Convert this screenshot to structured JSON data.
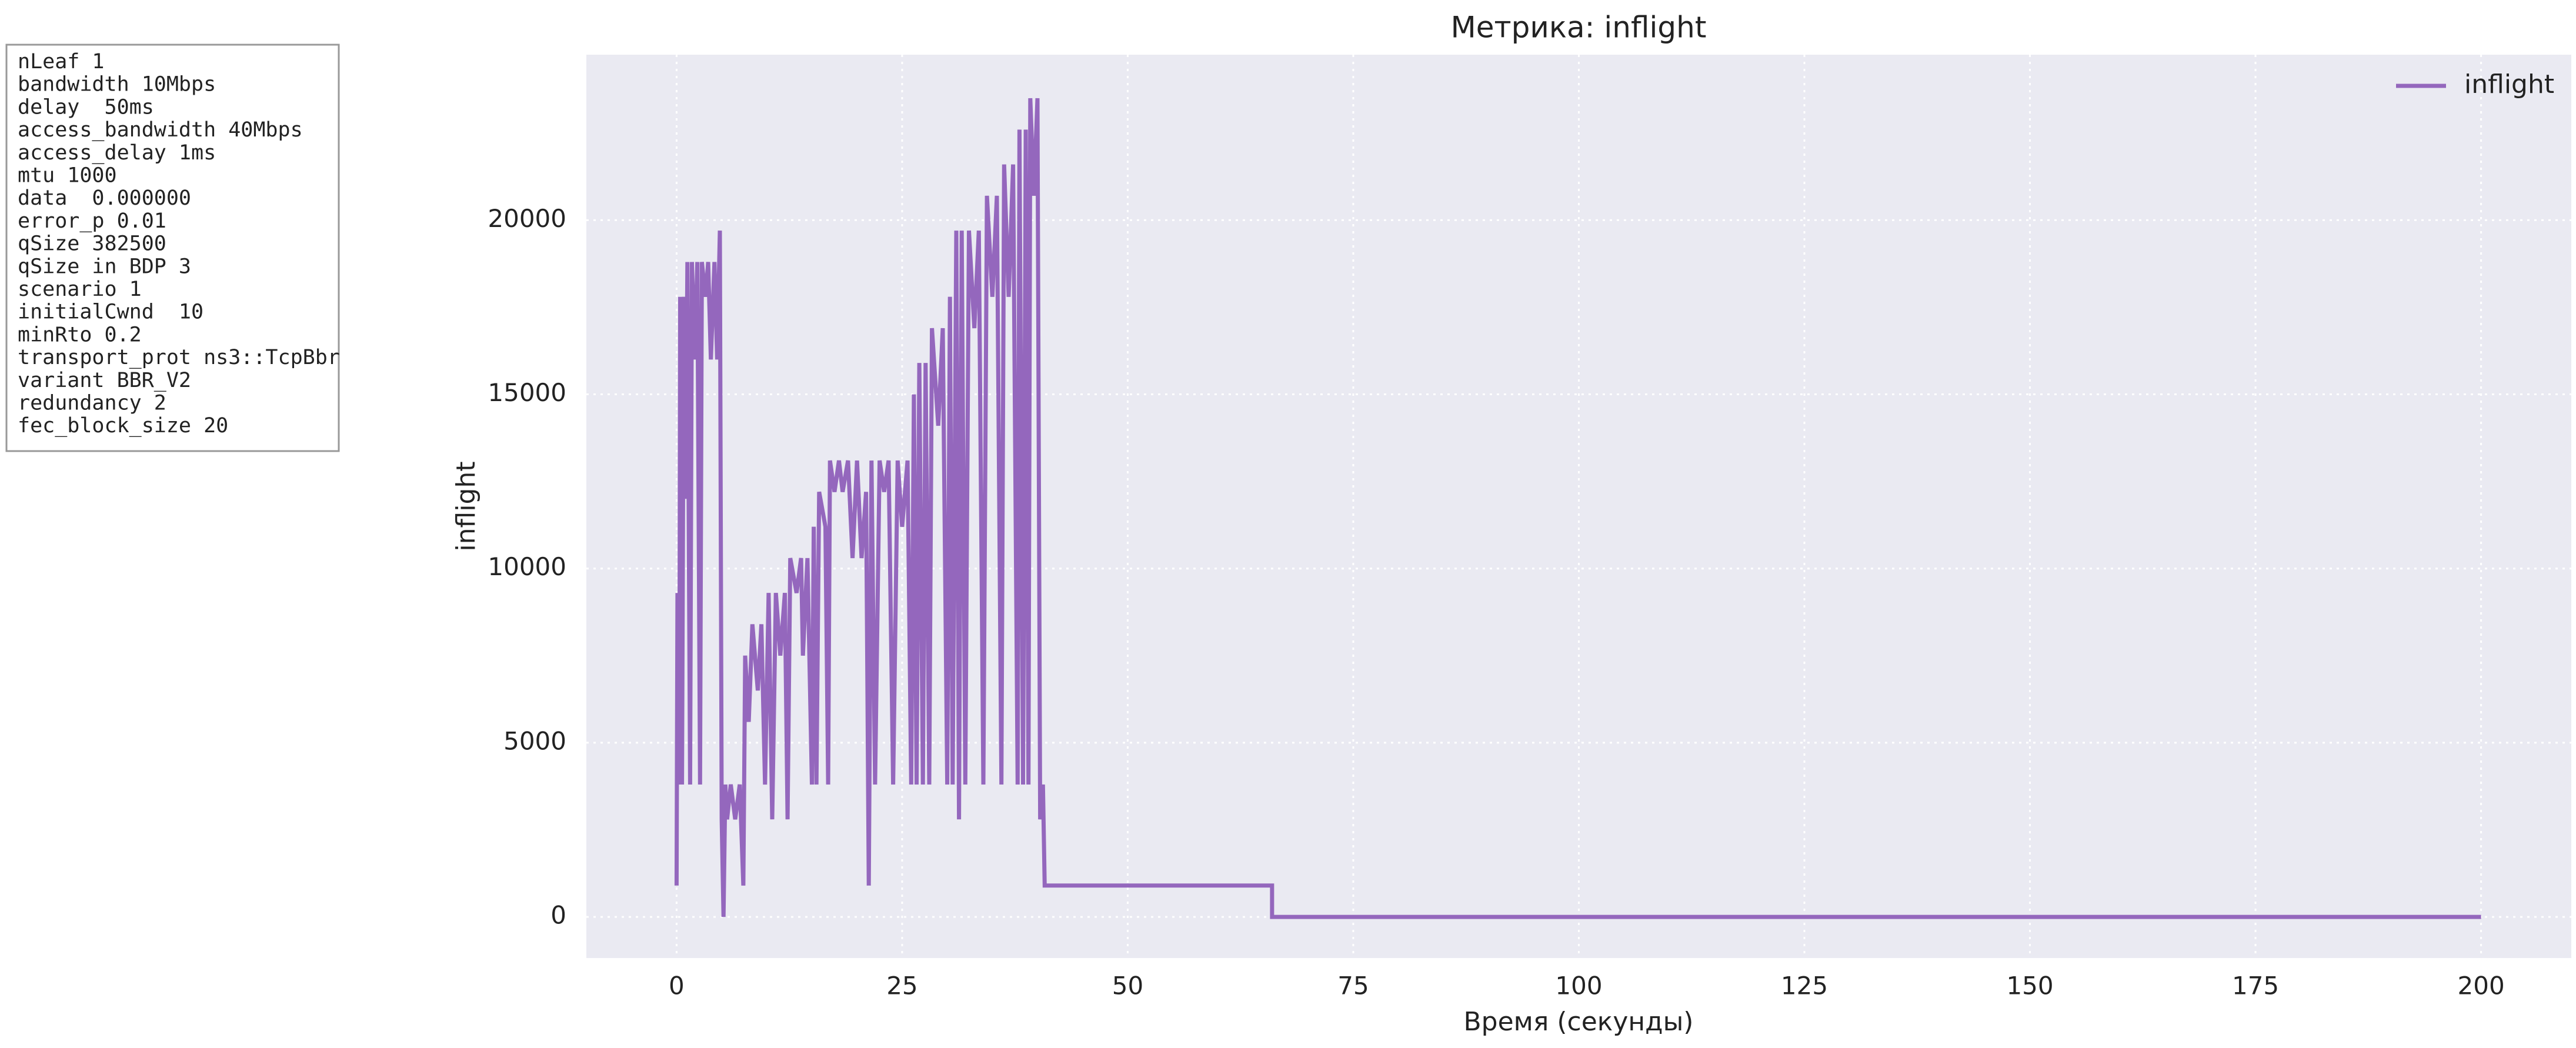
{
  "info_box": {
    "lines": [
      "nLeaf 1",
      "bandwidth 10Mbps",
      "delay  50ms",
      "access_bandwidth 40Mbps",
      "access_delay 1ms",
      "mtu 1000",
      "data  0.000000",
      "error_p 0.01",
      "qSize 382500",
      "qSize in BDP 3",
      "scenario 1",
      "initialCwnd  10",
      "minRto 0.2",
      "transport_prot ns3::TcpBbr",
      "variant BBR_V2",
      "redundancy 2",
      "fec_block_size 20"
    ]
  },
  "chart_data": {
    "type": "line",
    "title": "Метрика: inflight",
    "x_label": "Время (секунды)",
    "y_label": "inflight",
    "x": [
      0,
      0.1,
      0.3,
      0.4,
      0.6,
      0.8,
      1,
      1.2,
      1.5,
      1.7,
      2,
      2.3,
      2.6,
      2.8,
      3.2,
      3.5,
      3.8,
      4.2,
      4.5,
      4.8,
      5.0,
      5.2,
      5.4,
      5.6,
      6,
      6.5,
      7,
      7.4,
      7.6,
      8,
      8.4,
      9,
      9.4,
      9.8,
      10.2,
      10.6,
      11,
      11.5,
      12,
      12.3,
      12.6,
      13.3,
      13.8,
      14,
      14.5,
      15,
      15.2,
      15.5,
      15.8,
      16.5,
      16.8,
      17,
      17.5,
      18,
      18.4,
      19,
      19.5,
      20,
      20.5,
      21,
      21.3,
      21.6,
      22,
      22.5,
      23,
      23.5,
      24,
      24.5,
      25,
      25.6,
      26,
      26.3,
      26.6,
      26.9,
      27.3,
      27.6,
      28,
      28.3,
      29,
      29.5,
      30,
      30.3,
      30.6,
      31,
      31.3,
      31.6,
      32,
      32.4,
      33,
      33.5,
      34,
      34.4,
      35,
      35.5,
      36,
      36.3,
      36.8,
      37.3,
      37.8,
      38,
      38.4,
      38.7,
      39,
      39.2,
      39.6,
      40,
      40.3,
      40.6,
      40.8,
      66,
      66,
      200
    ],
    "series": [
      {
        "name": "inflight",
        "color": "#9467bd",
        "values": [
          900,
          9300,
          3800,
          17800,
          3800,
          17800,
          12000,
          18800,
          3800,
          18800,
          16000,
          18800,
          3800,
          18800,
          17800,
          18800,
          16000,
          18800,
          16000,
          19700,
          2800,
          0,
          3800,
          2800,
          3800,
          2800,
          3800,
          900,
          7500,
          5600,
          8400,
          6500,
          8400,
          3800,
          9300,
          2800,
          9300,
          7500,
          9300,
          2800,
          10300,
          9300,
          10300,
          7500,
          10300,
          3800,
          11200,
          3800,
          12200,
          11200,
          3800,
          13100,
          12200,
          13100,
          12200,
          13100,
          10300,
          13100,
          10300,
          12200,
          900,
          13100,
          3800,
          13100,
          12200,
          13100,
          3800,
          13100,
          11200,
          13100,
          3800,
          15000,
          3800,
          15900,
          3800,
          15900,
          3800,
          16900,
          14100,
          16900,
          3800,
          17800,
          3800,
          19700,
          2800,
          19700,
          3800,
          19700,
          16900,
          19700,
          3800,
          20700,
          17800,
          20700,
          3800,
          21600,
          17800,
          21600,
          3800,
          22600,
          3800,
          22600,
          3800,
          23500,
          20700,
          23500,
          2800,
          3800,
          900,
          900,
          0,
          0
        ]
      }
    ],
    "xlim": [
      -10,
      210
    ],
    "ylim": [
      -1180,
      24750
    ],
    "xticks": [
      0,
      25,
      50,
      75,
      100,
      125,
      150,
      175,
      200
    ],
    "yticks": [
      0,
      5000,
      10000,
      15000,
      20000
    ],
    "grid": true,
    "legend": "upper right"
  }
}
